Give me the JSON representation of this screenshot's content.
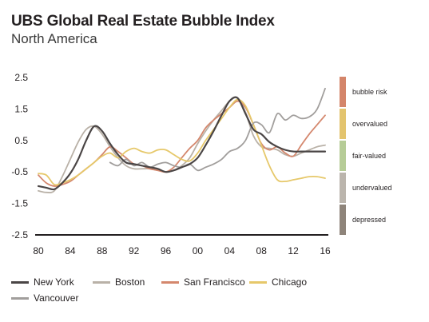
{
  "title": "UBS Global Real Estate Bubble Index",
  "subtitle": "North America",
  "legend": [
    {
      "name": "New York",
      "color": "#4a4545"
    },
    {
      "name": "Boston",
      "color": "#b9b1a7"
    },
    {
      "name": "San Francisco",
      "color": "#d4876d"
    },
    {
      "name": "Chicago",
      "color": "#e6c86a"
    },
    {
      "name": "Vancouver",
      "color": "#a19e9c"
    }
  ],
  "bands": [
    {
      "label": "bubble risk",
      "color": "#d4856a"
    },
    {
      "label": "overvalued",
      "color": "#e3c46e"
    },
    {
      "label": "fair-valued",
      "color": "#b6cc97"
    },
    {
      "label": "undervalued",
      "color": "#bbb5ad"
    },
    {
      "label": "depressed",
      "color": "#8e847a"
    }
  ],
  "chart_data": {
    "type": "line",
    "title": "UBS Global Real Estate Bubble Index",
    "subtitle": "North America",
    "xlabel": "",
    "ylabel": "",
    "xlim": [
      1980,
      2016
    ],
    "ylim": [
      -2.5,
      2.5
    ],
    "x_ticks": [
      "80",
      "84",
      "88",
      "92",
      "96",
      "00",
      "04",
      "08",
      "12",
      "16"
    ],
    "y_ticks": [
      "2.5",
      "1.5",
      "0.5",
      "-0.5",
      "-1.5",
      "-2.5"
    ],
    "grid": false,
    "legend_position": "bottom",
    "series": [
      {
        "name": "Boston",
        "color": "#b9b1a7",
        "x": [
          1980,
          1981,
          1982,
          1983,
          1984,
          1985,
          1986,
          1987,
          1988,
          1989,
          1990,
          1991,
          1992,
          1993,
          1994,
          1995,
          1996,
          1997,
          1998,
          1999,
          2000,
          2001,
          2002,
          2003,
          2004,
          2005,
          2006,
          2007,
          2008,
          2009,
          2010,
          2011,
          2012,
          2013,
          2014,
          2015,
          2016
        ],
        "y": [
          -1.1,
          -1.15,
          -1.1,
          -0.65,
          -0.1,
          0.45,
          0.85,
          0.95,
          0.7,
          0.3,
          -0.05,
          -0.3,
          -0.4,
          -0.4,
          -0.4,
          -0.45,
          -0.5,
          -0.45,
          -0.3,
          -0.05,
          0.4,
          0.8,
          1.15,
          1.45,
          1.75,
          1.85,
          1.4,
          0.65,
          0.3,
          0.25,
          0.2,
          0.05,
          0.0,
          0.1,
          0.2,
          0.3,
          0.35
        ]
      },
      {
        "name": "San Francisco",
        "color": "#d4876d",
        "x": [
          1980,
          1981,
          1982,
          1983,
          1984,
          1985,
          1986,
          1987,
          1988,
          1989,
          1990,
          1991,
          1992,
          1993,
          1994,
          1995,
          1996,
          1997,
          1998,
          1999,
          2000,
          2001,
          2002,
          2003,
          2004,
          2005,
          2006,
          2007,
          2008,
          2009,
          2010,
          2011,
          2012,
          2013,
          2014,
          2015,
          2016
        ],
        "y": [
          -0.6,
          -0.85,
          -0.95,
          -0.9,
          -0.8,
          -0.6,
          -0.4,
          -0.2,
          0.05,
          0.3,
          0.15,
          -0.05,
          -0.25,
          -0.3,
          -0.4,
          -0.45,
          -0.5,
          -0.35,
          -0.05,
          0.25,
          0.5,
          0.9,
          1.15,
          1.35,
          1.55,
          1.75,
          1.55,
          1.0,
          0.4,
          0.2,
          0.3,
          0.1,
          0.0,
          0.35,
          0.7,
          1.0,
          1.3
        ]
      },
      {
        "name": "Chicago",
        "color": "#e6c86a",
        "x": [
          1980,
          1981,
          1982,
          1983,
          1984,
          1985,
          1986,
          1987,
          1988,
          1989,
          1990,
          1991,
          1992,
          1993,
          1994,
          1995,
          1996,
          1997,
          1998,
          1999,
          2000,
          2001,
          2002,
          2003,
          2004,
          2005,
          2006,
          2007,
          2008,
          2009,
          2010,
          2011,
          2012,
          2013,
          2014,
          2015,
          2016
        ],
        "y": [
          -0.55,
          -0.6,
          -0.9,
          -0.85,
          -0.75,
          -0.6,
          -0.4,
          -0.2,
          0.0,
          0.1,
          -0.05,
          0.15,
          0.25,
          0.15,
          0.1,
          0.2,
          0.2,
          0.05,
          -0.1,
          -0.15,
          0.1,
          0.5,
          0.85,
          1.2,
          1.55,
          1.8,
          1.6,
          1.0,
          0.35,
          -0.3,
          -0.75,
          -0.8,
          -0.75,
          -0.7,
          -0.65,
          -0.65,
          -0.7
        ]
      },
      {
        "name": "Vancouver",
        "color": "#a19e9c",
        "x": [
          1989,
          1990,
          1991,
          1992,
          1993,
          1994,
          1995,
          1996,
          1997,
          1998,
          1999,
          2000,
          2001,
          2002,
          2003,
          2004,
          2005,
          2006,
          2007,
          2008,
          2009,
          2010,
          2011,
          2012,
          2013,
          2014,
          2015,
          2016
        ],
        "y": [
          -0.2,
          -0.3,
          -0.1,
          -0.3,
          -0.2,
          -0.35,
          -0.25,
          -0.2,
          -0.3,
          -0.35,
          -0.25,
          -0.45,
          -0.35,
          -0.25,
          -0.1,
          0.15,
          0.25,
          0.5,
          1.05,
          1.0,
          0.75,
          1.35,
          1.15,
          1.3,
          1.2,
          1.25,
          1.5,
          2.15
        ]
      },
      {
        "name": "New York",
        "color": "#4a4545",
        "x": [
          1980,
          1981,
          1982,
          1983,
          1984,
          1985,
          1986,
          1987,
          1988,
          1989,
          1990,
          1991,
          1992,
          1993,
          1994,
          1995,
          1996,
          1997,
          1998,
          1999,
          2000,
          2001,
          2002,
          2003,
          2004,
          2005,
          2006,
          2007,
          2008,
          2009,
          2010,
          2011,
          2012,
          2013,
          2014,
          2015,
          2016
        ],
        "y": [
          -0.95,
          -1.0,
          -1.05,
          -0.85,
          -0.55,
          -0.1,
          0.5,
          0.95,
          0.8,
          0.4,
          0.05,
          -0.2,
          -0.25,
          -0.3,
          -0.35,
          -0.4,
          -0.5,
          -0.45,
          -0.35,
          -0.25,
          -0.05,
          0.35,
          0.8,
          1.3,
          1.75,
          1.85,
          1.35,
          0.85,
          0.7,
          0.45,
          0.3,
          0.2,
          0.15,
          0.15,
          0.15,
          0.15,
          0.15
        ]
      }
    ]
  }
}
